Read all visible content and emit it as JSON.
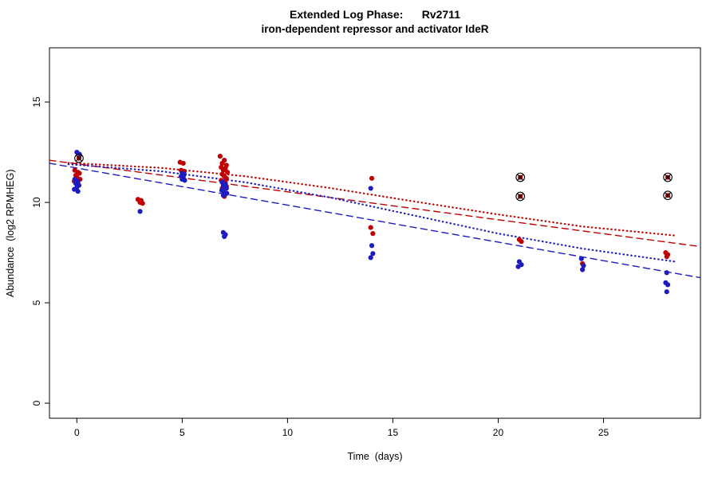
{
  "title": "Extended Log Phase:      Rv2711",
  "subtitle": "iron-dependent repressor and activator IdeR",
  "chart_data": {
    "type": "scatter",
    "title": "Extended Log Phase: Rv2711",
    "subtitle": "iron-dependent repressor and activator IdeR",
    "xlabel": "Time  (days)",
    "ylabel": "Abundance  (log2 RPMHEG)",
    "xlim": [
      -1.3,
      29.6
    ],
    "ylim": [
      -0.75,
      17.7
    ],
    "x_ticks": [
      0,
      5,
      10,
      15,
      20,
      25
    ],
    "y_ticks": [
      0,
      5,
      10,
      15
    ],
    "grid": false,
    "legend": "none",
    "colors": {
      "red": "#c00000",
      "blue": "#1c1cc0",
      "outlier_mark": "#000000"
    },
    "series": [
      {
        "name": "red-points",
        "color": "red",
        "points": [
          [
            -0.1,
            11.6
          ],
          [
            0.05,
            11.5
          ],
          [
            0.12,
            11.45
          ],
          [
            -0.05,
            11.35
          ],
          [
            0,
            11.25
          ],
          [
            0.15,
            11.15
          ],
          [
            -0.12,
            11.05
          ],
          [
            0.05,
            10.95
          ],
          [
            2.9,
            10.15
          ],
          [
            3.05,
            10.1
          ],
          [
            3,
            10
          ],
          [
            3.12,
            9.95
          ],
          [
            4.9,
            12
          ],
          [
            5.05,
            11.95
          ],
          [
            4.95,
            11.6
          ],
          [
            5.1,
            11.55
          ],
          [
            5,
            11.5
          ],
          [
            6.8,
            12.3
          ],
          [
            7,
            12.1
          ],
          [
            6.9,
            11.95
          ],
          [
            7.1,
            11.85
          ],
          [
            6.85,
            11.75
          ],
          [
            7.05,
            11.7
          ],
          [
            6.95,
            11.6
          ],
          [
            7.15,
            11.5
          ],
          [
            6.9,
            11.4
          ],
          [
            7,
            11.3
          ],
          [
            7.1,
            11.2
          ],
          [
            6.85,
            11.1
          ],
          [
            7.05,
            11
          ],
          [
            6.95,
            10.9
          ],
          [
            7.1,
            10.8
          ],
          [
            6.9,
            10.7
          ],
          [
            7,
            10.3
          ],
          [
            14,
            11.2
          ],
          [
            13.95,
            8.75
          ],
          [
            14.05,
            8.45
          ],
          [
            21,
            8.15
          ],
          [
            21.1,
            8.05
          ],
          [
            24,
            6.95
          ],
          [
            27.95,
            7.5
          ],
          [
            28.05,
            7.4
          ],
          [
            28,
            7.3
          ]
        ]
      },
      {
        "name": "blue-points",
        "color": "blue",
        "points": [
          [
            0,
            12.5
          ],
          [
            0.12,
            12.4
          ],
          [
            -0.1,
            11.15
          ],
          [
            0.05,
            11.05
          ],
          [
            -0.05,
            10.95
          ],
          [
            0.1,
            10.85
          ],
          [
            0,
            10.75
          ],
          [
            -0.12,
            10.65
          ],
          [
            0.05,
            10.55
          ],
          [
            3,
            9.55
          ],
          [
            5,
            11.45
          ],
          [
            5.1,
            11.4
          ],
          [
            4.95,
            11.3
          ],
          [
            5.05,
            11.25
          ],
          [
            5,
            11.15
          ],
          [
            5.12,
            11.1
          ],
          [
            6.9,
            11
          ],
          [
            7.05,
            10.9
          ],
          [
            6.95,
            10.8
          ],
          [
            7.1,
            10.7
          ],
          [
            6.88,
            10.6
          ],
          [
            7,
            10.5
          ],
          [
            7.12,
            10.45
          ],
          [
            6.95,
            10.35
          ],
          [
            6.95,
            8.5
          ],
          [
            7.05,
            8.4
          ],
          [
            7,
            8.3
          ],
          [
            13.95,
            10.7
          ],
          [
            14,
            7.85
          ],
          [
            14.05,
            7.45
          ],
          [
            13.95,
            7.25
          ],
          [
            21,
            7.05
          ],
          [
            21.1,
            6.9
          ],
          [
            20.95,
            6.8
          ],
          [
            23.95,
            7.2
          ],
          [
            24.05,
            6.85
          ],
          [
            24,
            6.65
          ],
          [
            28,
            6.5
          ],
          [
            27.95,
            6
          ],
          [
            28.05,
            5.9
          ],
          [
            28,
            5.55
          ]
        ]
      }
    ],
    "outliers": [
      {
        "x": 0.1,
        "y": 12.2,
        "color": "red"
      },
      {
        "x": 21.05,
        "y": 11.25,
        "color": "red"
      },
      {
        "x": 21.05,
        "y": 10.3,
        "color": "red"
      },
      {
        "x": 28.05,
        "y": 11.25,
        "color": "red"
      },
      {
        "x": 28.05,
        "y": 10.35,
        "color": "red"
      }
    ],
    "lines": [
      {
        "name": "red-dashed",
        "color": "red",
        "style": "dashed",
        "points": [
          [
            -1.3,
            12.1
          ],
          [
            29.6,
            7.8
          ]
        ]
      },
      {
        "name": "blue-dashed",
        "color": "blue",
        "style": "dashed",
        "points": [
          [
            -1.3,
            11.95
          ],
          [
            29.6,
            6.25
          ]
        ]
      },
      {
        "name": "red-dotted",
        "color": "red",
        "style": "dotted",
        "points": [
          [
            -0.4,
            11.97
          ],
          [
            4,
            11.72
          ],
          [
            8,
            11.3
          ],
          [
            12,
            10.72
          ],
          [
            16,
            10.05
          ],
          [
            20,
            9.4
          ],
          [
            24,
            8.8
          ],
          [
            28.4,
            8.35
          ]
        ]
      },
      {
        "name": "blue-dotted",
        "color": "blue",
        "style": "dotted",
        "points": [
          [
            -0.4,
            11.9
          ],
          [
            4,
            11.55
          ],
          [
            8,
            11.0
          ],
          [
            12,
            10.25
          ],
          [
            16,
            9.35
          ],
          [
            20,
            8.45
          ],
          [
            24,
            7.7
          ],
          [
            28.4,
            7.05
          ]
        ]
      }
    ]
  }
}
